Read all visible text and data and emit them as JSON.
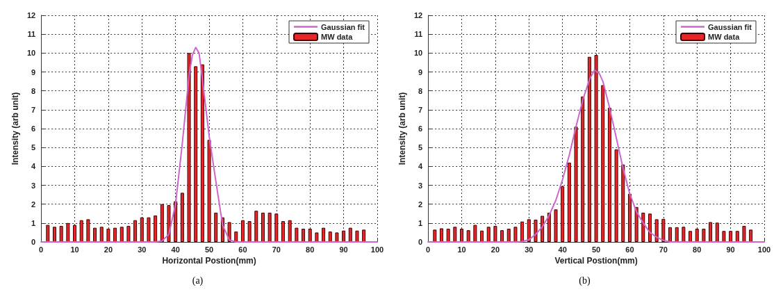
{
  "chart_data": [
    {
      "type": "bar",
      "xlabel": "Horizontal Postion(mm)",
      "ylabel": "Intensity (arb unit)",
      "annotations": [
        "(a)"
      ],
      "xlim": [
        0,
        100
      ],
      "xticks": [
        0,
        10,
        20,
        30,
        40,
        50,
        60,
        70,
        80,
        90,
        100
      ],
      "ylim": [
        0,
        12
      ],
      "yticks": [
        0,
        1,
        2,
        3,
        4,
        5,
        6,
        7,
        8,
        9,
        10,
        11,
        12
      ],
      "grid": true,
      "legend": "top right",
      "x": [
        2,
        4,
        6,
        8,
        10,
        12,
        14,
        16,
        18,
        20,
        22,
        24,
        26,
        28,
        30,
        32,
        34,
        36,
        38,
        40,
        42,
        44,
        46,
        48,
        50,
        52,
        54,
        56,
        58,
        60,
        62,
        64,
        66,
        68,
        70,
        72,
        74,
        76,
        78,
        80,
        82,
        84,
        86,
        88,
        90,
        92,
        94,
        96
      ],
      "series": [
        {
          "name": "Gaussian fit",
          "type": "line",
          "marker": "none",
          "color": "#cc66cc",
          "x": [
            0,
            34,
            36,
            38,
            40,
            42,
            44,
            45,
            46,
            47,
            48,
            50,
            52,
            54,
            56,
            58,
            100
          ],
          "values": [
            0,
            0,
            0.05,
            0.4,
            2.0,
            5.2,
            8.8,
            9.9,
            10.3,
            10.0,
            8.6,
            5.6,
            3.2,
            0.9,
            0.1,
            0,
            0
          ]
        },
        {
          "name": "MW data",
          "color": "#e8262a",
          "values": [
            0.9,
            0.8,
            0.85,
            1.0,
            0.9,
            1.15,
            1.2,
            0.75,
            0.8,
            0.7,
            0.75,
            0.8,
            0.85,
            1.15,
            1.3,
            1.3,
            1.4,
            2.0,
            1.95,
            2.15,
            2.6,
            10.0,
            9.3,
            9.4,
            5.4,
            1.55,
            1.3,
            1.05,
            0.55,
            1.15,
            1.1,
            1.65,
            1.55,
            1.55,
            1.5,
            1.1,
            1.15,
            0.75,
            0.7,
            0.7,
            0.5,
            0.75,
            0.55,
            0.5,
            0.6,
            0.75,
            0.6,
            0.65
          ]
        }
      ]
    },
    {
      "type": "bar",
      "xlabel": "Vertical Postion(mm)",
      "ylabel": "Intensity (arb unit)",
      "annotations": [
        "(b)"
      ],
      "xlim": [
        0,
        100
      ],
      "xticks": [
        0,
        10,
        20,
        30,
        40,
        50,
        60,
        70,
        80,
        90,
        100
      ],
      "ylim": [
        0,
        12
      ],
      "yticks": [
        0,
        1,
        2,
        3,
        4,
        5,
        6,
        7,
        8,
        9,
        10,
        11,
        12
      ],
      "grid": true,
      "legend": "top right",
      "x": [
        2,
        4,
        6,
        8,
        10,
        12,
        14,
        16,
        18,
        20,
        22,
        24,
        26,
        28,
        30,
        32,
        34,
        36,
        38,
        40,
        42,
        44,
        46,
        48,
        50,
        52,
        54,
        56,
        58,
        60,
        62,
        64,
        66,
        68,
        70,
        72,
        74,
        76,
        78,
        80,
        82,
        84,
        86,
        88,
        90,
        92,
        94,
        96
      ],
      "series": [
        {
          "name": "Gaussian fit",
          "type": "line",
          "marker": "none",
          "color": "#cc66cc",
          "x": [
            0,
            26,
            28,
            30,
            32,
            34,
            36,
            38,
            40,
            42,
            44,
            46,
            48,
            49.5,
            51,
            52,
            54,
            56,
            58,
            60,
            62,
            64,
            66,
            68,
            70,
            72,
            100
          ],
          "values": [
            0,
            0,
            0.02,
            0.12,
            0.4,
            0.8,
            1.4,
            2.2,
            3.3,
            4.6,
            6.1,
            7.5,
            8.6,
            9.1,
            8.9,
            8.5,
            7.1,
            5.5,
            3.9,
            2.55,
            1.6,
            1.0,
            0.5,
            0.25,
            0.08,
            0,
            0
          ]
        },
        {
          "name": "MW data",
          "color": "#e8262a",
          "values": [
            0.65,
            0.72,
            0.7,
            0.8,
            0.7,
            0.62,
            0.9,
            0.6,
            0.8,
            0.85,
            0.62,
            0.7,
            0.8,
            1.08,
            1.2,
            1.18,
            1.38,
            1.55,
            1.72,
            2.95,
            4.2,
            6.1,
            7.7,
            9.8,
            9.9,
            8.3,
            7.1,
            4.9,
            4.1,
            2.55,
            1.85,
            1.55,
            1.5,
            1.2,
            1.22,
            0.78,
            0.78,
            0.8,
            0.58,
            0.7,
            0.7,
            1.05,
            1.02,
            0.58,
            0.58,
            0.58,
            0.85,
            0.65
          ]
        }
      ]
    }
  ]
}
